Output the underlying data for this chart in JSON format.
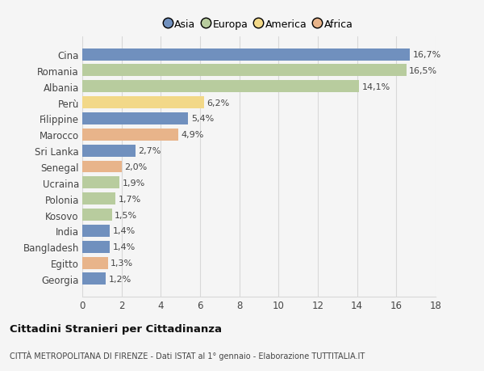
{
  "categories": [
    "Cina",
    "Romania",
    "Albania",
    "Perù",
    "Filippine",
    "Marocco",
    "Sri Lanka",
    "Senegal",
    "Ucraina",
    "Polonia",
    "Kosovo",
    "India",
    "Bangladesh",
    "Egitto",
    "Georgia"
  ],
  "values": [
    16.7,
    16.5,
    14.1,
    6.2,
    5.4,
    4.9,
    2.7,
    2.0,
    1.9,
    1.7,
    1.5,
    1.4,
    1.4,
    1.3,
    1.2
  ],
  "labels": [
    "16,7%",
    "16,5%",
    "14,1%",
    "6,2%",
    "5,4%",
    "4,9%",
    "2,7%",
    "2,0%",
    "1,9%",
    "1,7%",
    "1,5%",
    "1,4%",
    "1,4%",
    "1,3%",
    "1,2%"
  ],
  "colors": [
    "#7090be",
    "#b8cc9e",
    "#b8cc9e",
    "#f2d888",
    "#7090be",
    "#e8b48a",
    "#7090be",
    "#e8b48a",
    "#b8cc9e",
    "#b8cc9e",
    "#b8cc9e",
    "#7090be",
    "#7090be",
    "#e8b48a",
    "#7090be"
  ],
  "legend_labels": [
    "Asia",
    "Europa",
    "America",
    "Africa"
  ],
  "legend_colors": [
    "#7090be",
    "#b8cc9e",
    "#f2d888",
    "#e8b48a"
  ],
  "title": "Cittadini Stranieri per Cittadinanza",
  "subtitle": "CITTÀ METROPOLITANA DI FIRENZE - Dati ISTAT al 1° gennaio - Elaborazione TUTTITALIA.IT",
  "xlim": [
    0,
    18
  ],
  "xticks": [
    0,
    2,
    4,
    6,
    8,
    10,
    12,
    14,
    16,
    18
  ],
  "background_color": "#f5f5f5",
  "grid_color": "#d8d8d8",
  "bar_height": 0.75
}
